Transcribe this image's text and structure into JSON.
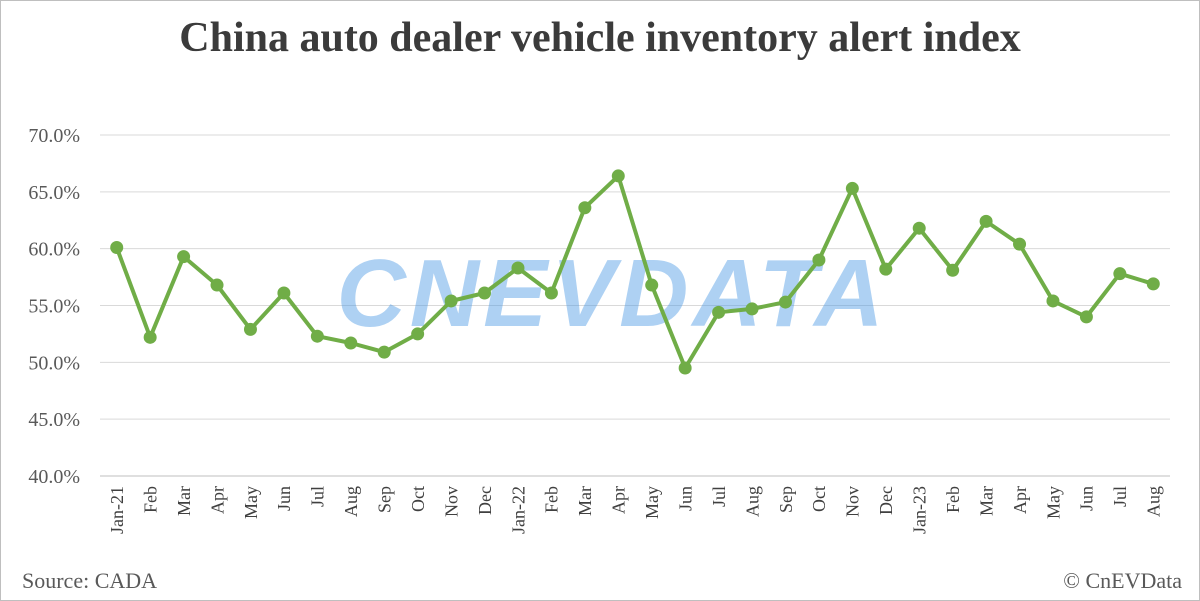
{
  "chart_data": {
    "type": "line",
    "title": "China auto dealer vehicle inventory alert index",
    "xlabel": "",
    "ylabel": "",
    "categories": [
      "Jan-21",
      "Feb",
      "Mar",
      "Apr",
      "May",
      "Jun",
      "Jul",
      "Aug",
      "Sep",
      "Oct",
      "Nov",
      "Dec",
      "Jan-22",
      "Feb",
      "Mar",
      "Apr",
      "May",
      "Jun",
      "Jul",
      "Aug",
      "Sep",
      "Oct",
      "Nov",
      "Dec",
      "Jan-23",
      "Feb",
      "Mar",
      "Apr",
      "May",
      "Jun",
      "Jul",
      "Aug"
    ],
    "series": [
      {
        "values": [
          60.1,
          52.2,
          59.3,
          56.8,
          52.9,
          56.1,
          52.3,
          51.7,
          50.9,
          52.5,
          55.4,
          56.1,
          58.3,
          56.1,
          63.6,
          66.4,
          56.8,
          49.5,
          54.4,
          54.7,
          55.3,
          59.0,
          65.3,
          58.2,
          61.8,
          58.1,
          62.4,
          60.4,
          55.4,
          54.0,
          57.8,
          56.9
        ]
      }
    ],
    "ylim": [
      40,
      70
    ],
    "yticks": [
      "40.0%",
      "45.0%",
      "50.0%",
      "55.0%",
      "60.0%",
      "65.0%",
      "70.0%"
    ],
    "grid": true,
    "line_color": "#70ad47",
    "watermark": "CNEVDATA",
    "source": "Source: CADA",
    "copyright": "© CnEVData"
  }
}
